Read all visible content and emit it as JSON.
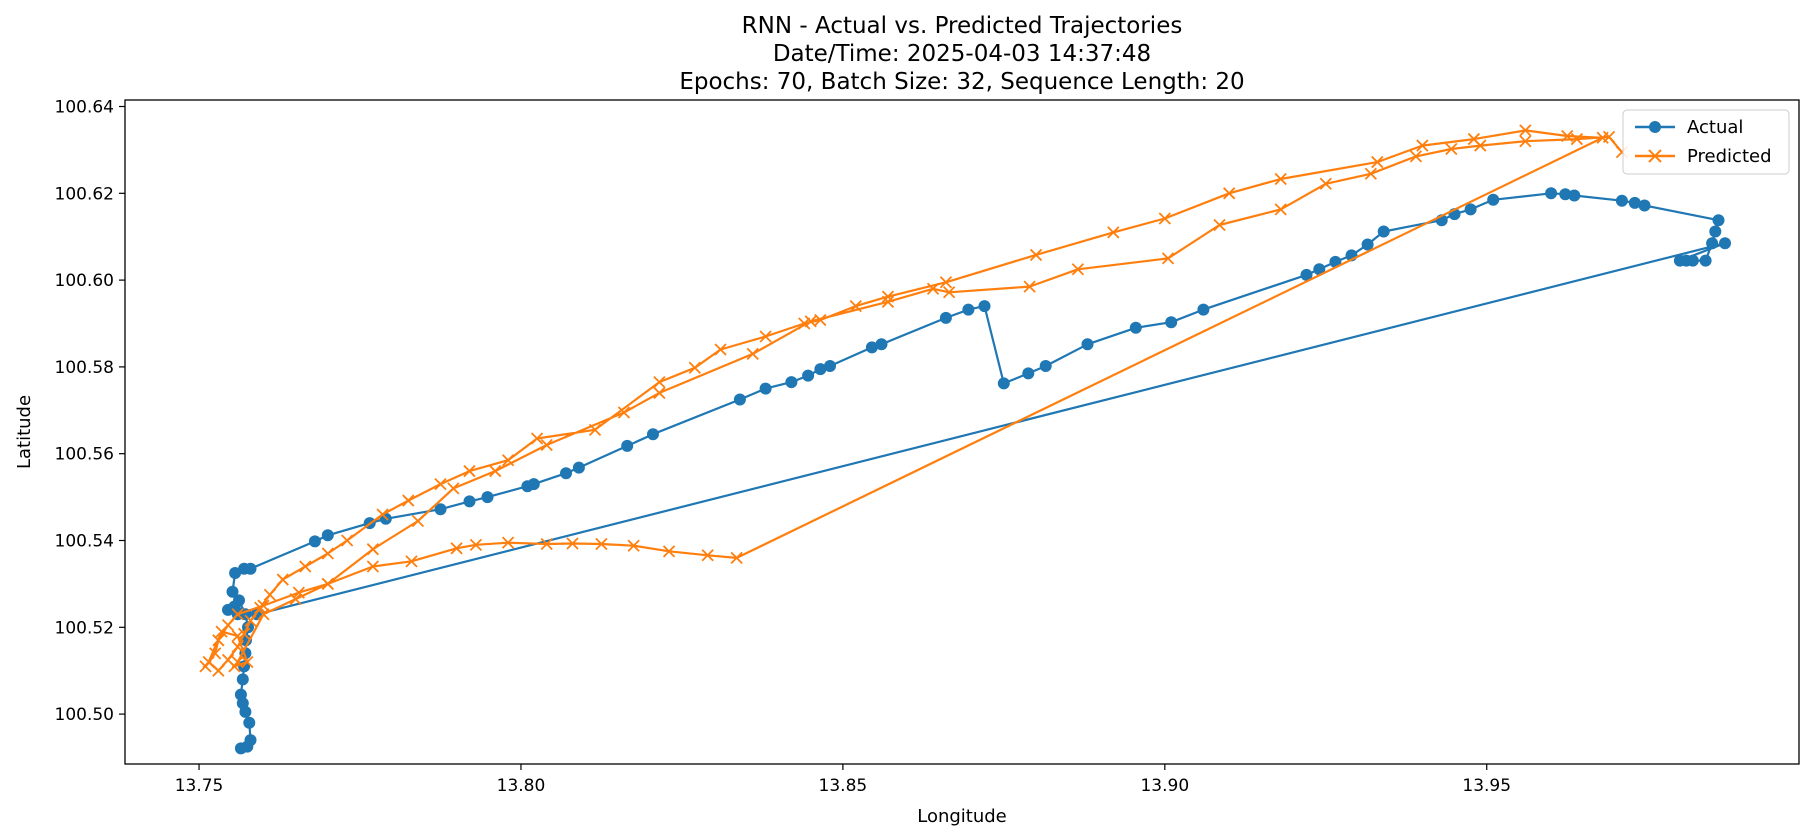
{
  "chart_data": {
    "type": "line",
    "title": [
      "RNN - Actual vs. Predicted Trajectories",
      "Date/Time: 2025-04-03 14:37:48",
      "Epochs: 70, Batch Size: 32, Sequence Length: 20"
    ],
    "xlabel": "Longitude",
    "ylabel": "Latitude",
    "xlim": [
      13.7385,
      13.9985
    ],
    "ylim": [
      100.4885,
      100.6415
    ],
    "xticks": [
      "13.75",
      "13.80",
      "13.85",
      "13.90",
      "13.95"
    ],
    "yticks": [
      "100.50",
      "100.52",
      "100.54",
      "100.56",
      "100.58",
      "100.60",
      "100.62",
      "100.64"
    ],
    "grid": false,
    "legend_position": "top-right",
    "series": [
      {
        "name": "Actual",
        "color": "#1f77b4",
        "marker": "circle",
        "points": [
          [
            13.7565,
            100.4921
          ],
          [
            13.7575,
            100.4925
          ],
          [
            13.758,
            100.494
          ],
          [
            13.7578,
            100.498
          ],
          [
            13.7572,
            100.5005
          ],
          [
            13.7568,
            100.5025
          ],
          [
            13.7565,
            100.5045
          ],
          [
            13.7568,
            100.508
          ],
          [
            13.757,
            100.511
          ],
          [
            13.7572,
            100.514
          ],
          [
            13.7573,
            100.517
          ],
          [
            13.7576,
            100.52
          ],
          [
            13.7572,
            100.523
          ],
          [
            13.7562,
            100.5262
          ],
          [
            13.7552,
            100.5282
          ],
          [
            13.7556,
            100.5325
          ],
          [
            13.757,
            100.5335
          ],
          [
            13.758,
            100.5335
          ],
          [
            13.768,
            100.5398
          ],
          [
            13.77,
            100.5412
          ],
          [
            13.7765,
            100.544
          ],
          [
            13.779,
            100.545
          ],
          [
            13.7875,
            100.5472
          ],
          [
            13.792,
            100.549
          ],
          [
            13.7948,
            100.55
          ],
          [
            13.801,
            100.5525
          ],
          [
            13.802,
            100.553
          ],
          [
            13.807,
            100.5555
          ],
          [
            13.809,
            100.5568
          ],
          [
            13.8165,
            100.5618
          ],
          [
            13.8205,
            100.5645
          ],
          [
            13.834,
            100.5725
          ],
          [
            13.838,
            100.575
          ],
          [
            13.842,
            100.5765
          ],
          [
            13.8446,
            100.578
          ],
          [
            13.8465,
            100.5795
          ],
          [
            13.848,
            100.5802
          ],
          [
            13.8545,
            100.5845
          ],
          [
            13.856,
            100.5852
          ],
          [
            13.866,
            100.5913
          ],
          [
            13.8695,
            100.5932
          ],
          [
            13.872,
            100.594
          ],
          [
            13.875,
            100.5762
          ],
          [
            13.8788,
            100.5785
          ],
          [
            13.8815,
            100.5802
          ],
          [
            13.888,
            100.5852
          ],
          [
            13.8955,
            100.589
          ],
          [
            13.901,
            100.5903
          ],
          [
            13.906,
            100.5932
          ],
          [
            13.922,
            100.6012
          ],
          [
            13.924,
            100.6025
          ],
          [
            13.9265,
            100.6042
          ],
          [
            13.929,
            100.6057
          ],
          [
            13.9315,
            100.6082
          ],
          [
            13.934,
            100.6112
          ],
          [
            13.943,
            100.6138
          ],
          [
            13.945,
            100.6152
          ],
          [
            13.9475,
            100.6163
          ],
          [
            13.951,
            100.6185
          ],
          [
            13.96,
            100.62
          ],
          [
            13.9622,
            100.6198
          ],
          [
            13.9636,
            100.6195
          ],
          [
            13.971,
            100.6183
          ],
          [
            13.973,
            100.6178
          ],
          [
            13.9745,
            100.6172
          ],
          [
            13.986,
            100.6138
          ],
          [
            13.9855,
            100.6112
          ],
          [
            13.985,
            100.6085
          ],
          [
            13.984,
            100.6045
          ],
          [
            13.982,
            100.6045
          ],
          [
            13.981,
            100.6045
          ],
          [
            13.98,
            100.6045
          ],
          [
            13.987,
            100.6085
          ],
          [
            13.759,
            100.523
          ],
          [
            13.7555,
            100.5248
          ],
          [
            13.7545,
            100.524
          ],
          [
            13.756,
            100.523
          ]
        ]
      },
      {
        "name": "Predicted",
        "color": "#ff7f0e",
        "marker": "x",
        "points": [
          [
            13.751,
            100.511
          ],
          [
            13.7525,
            100.514
          ],
          [
            13.753,
            100.517
          ],
          [
            13.7545,
            100.5205
          ],
          [
            13.756,
            100.523
          ],
          [
            13.76,
            100.525
          ],
          [
            13.7655,
            100.528
          ],
          [
            13.77,
            100.53
          ],
          [
            13.777,
            100.534
          ],
          [
            13.783,
            100.5352
          ],
          [
            13.79,
            100.5382
          ],
          [
            13.793,
            100.539
          ],
          [
            13.798,
            100.5395
          ],
          [
            13.804,
            100.5392
          ],
          [
            13.808,
            100.5393
          ],
          [
            13.8125,
            100.5392
          ],
          [
            13.8175,
            100.5388
          ],
          [
            13.823,
            100.5375
          ],
          [
            13.829,
            100.5366
          ],
          [
            13.8335,
            100.536
          ],
          [
            13.968,
            100.6328
          ],
          [
            13.9625,
            100.6332
          ],
          [
            13.956,
            100.6345
          ],
          [
            13.948,
            100.6325
          ],
          [
            13.94,
            100.631
          ],
          [
            13.933,
            100.6272
          ],
          [
            13.918,
            100.6233
          ],
          [
            13.91,
            100.62
          ],
          [
            13.9,
            100.6142
          ],
          [
            13.892,
            100.611
          ],
          [
            13.88,
            100.6058
          ],
          [
            13.866,
            100.5995
          ],
          [
            13.857,
            100.5962
          ],
          [
            13.852,
            100.594
          ],
          [
            13.8465,
            100.5908
          ],
          [
            13.844,
            100.59
          ],
          [
            13.838,
            100.587
          ],
          [
            13.831,
            100.584
          ],
          [
            13.827,
            100.5798
          ],
          [
            13.8215,
            100.5765
          ],
          [
            13.8115,
            100.5655
          ],
          [
            13.8025,
            100.5635
          ],
          [
            13.798,
            100.5585
          ],
          [
            13.792,
            100.556
          ],
          [
            13.7875,
            100.553
          ],
          [
            13.7825,
            100.5492
          ],
          [
            13.7785,
            100.546
          ],
          [
            13.773,
            100.54
          ],
          [
            13.77,
            100.537
          ],
          [
            13.7665,
            100.534
          ],
          [
            13.763,
            100.531
          ],
          [
            13.761,
            100.5275
          ],
          [
            13.7595,
            100.5245
          ],
          [
            13.758,
            100.5215
          ],
          [
            13.757,
            100.5185
          ],
          [
            13.756,
            100.5155
          ],
          [
            13.7545,
            100.5125
          ],
          [
            13.753,
            100.51
          ],
          [
            13.7515,
            100.512
          ],
          [
            13.7535,
            100.519
          ],
          [
            13.756,
            100.518
          ],
          [
            13.7575,
            100.512
          ],
          [
            13.7555,
            100.511
          ],
          [
            13.756,
            100.512
          ],
          [
            13.76,
            100.523
          ],
          [
            13.765,
            100.5265
          ],
          [
            13.77,
            100.53
          ],
          [
            13.777,
            100.538
          ],
          [
            13.784,
            100.5445
          ],
          [
            13.7895,
            100.552
          ],
          [
            13.796,
            100.556
          ],
          [
            13.804,
            100.562
          ],
          [
            13.816,
            100.5695
          ],
          [
            13.8215,
            100.574
          ],
          [
            13.836,
            100.583
          ],
          [
            13.845,
            100.5905
          ],
          [
            13.857,
            100.595
          ],
          [
            13.864,
            100.598
          ],
          [
            13.8665,
            100.5972
          ],
          [
            13.879,
            100.5985
          ],
          [
            13.8865,
            100.6025
          ],
          [
            13.9005,
            100.605
          ],
          [
            13.9085,
            100.6127
          ],
          [
            13.918,
            100.6163
          ],
          [
            13.925,
            100.6222
          ],
          [
            13.932,
            100.6245
          ],
          [
            13.939,
            100.6285
          ],
          [
            13.9445,
            100.6302
          ],
          [
            13.949,
            100.631
          ],
          [
            13.956,
            100.632
          ],
          [
            13.964,
            100.6325
          ],
          [
            13.969,
            100.633
          ],
          [
            13.971,
            100.6295
          ]
        ]
      }
    ]
  }
}
